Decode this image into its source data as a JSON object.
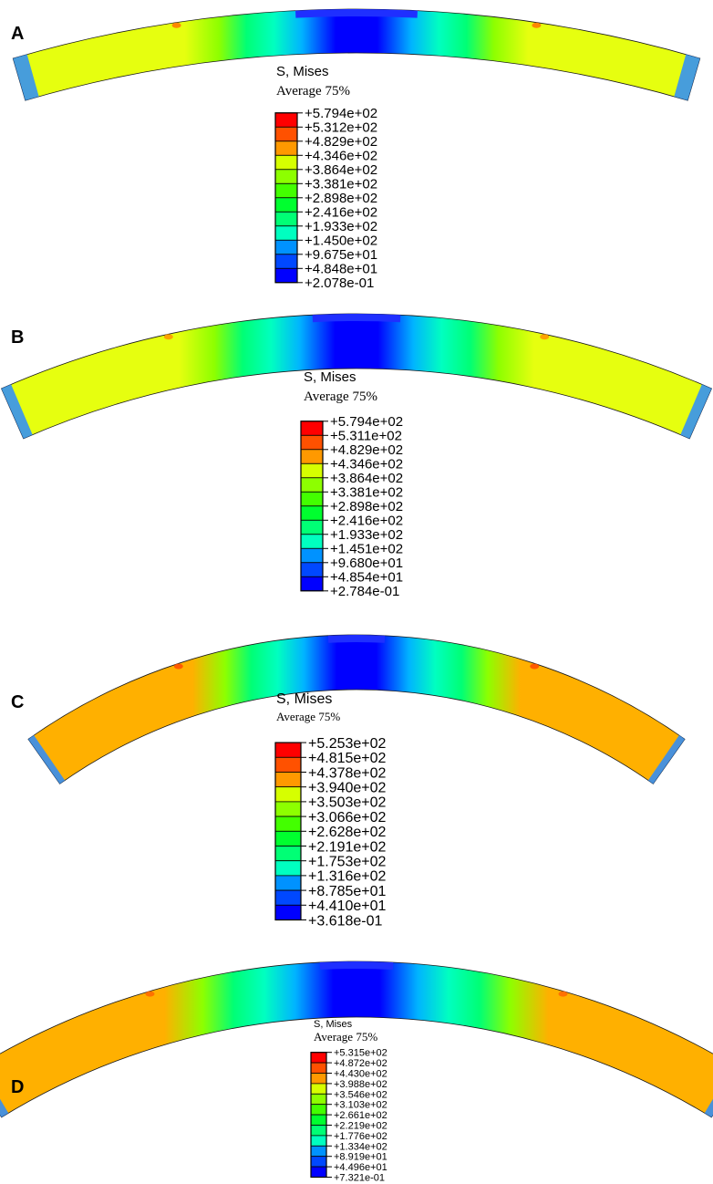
{
  "palette": [
    "#0000ff",
    "#0048ff",
    "#0092ff",
    "#00d8ff",
    "#00ffc0",
    "#00ff75",
    "#00ff2f",
    "#43ff00",
    "#8dff00",
    "#d6ff00",
    "#ffe100",
    "#ff9900",
    "#ff5100",
    "#ff0000"
  ],
  "panels": [
    {
      "letter": "A",
      "title": "S, Mises",
      "subtitle": "Average 75%",
      "values": [
        "+5.794e+02",
        "+5.312e+02",
        "+4.829e+02",
        "+4.346e+02",
        "+3.864e+02",
        "+3.381e+02",
        "+2.898e+02",
        "+2.416e+02",
        "+1.933e+02",
        "+1.450e+02",
        "+9.675e+01",
        "+4.848e+01",
        "+2.078e-01"
      ],
      "dominant_color": "#e6ff0f",
      "accent_color": "#ff7a00"
    },
    {
      "letter": "B",
      "title": "S, Mises",
      "subtitle": "Average 75%",
      "values": [
        "+5.794e+02",
        "+5.311e+02",
        "+4.829e+02",
        "+4.346e+02",
        "+3.864e+02",
        "+3.381e+02",
        "+2.898e+02",
        "+2.416e+02",
        "+1.933e+02",
        "+1.451e+02",
        "+9.680e+01",
        "+4.854e+01",
        "+2.784e-01"
      ],
      "dominant_color": "#e6ff0f",
      "accent_color": "#ff9900"
    },
    {
      "letter": "C",
      "title": "S, Mises",
      "subtitle": "Average 75%",
      "values": [
        "+5.253e+02",
        "+4.815e+02",
        "+4.378e+02",
        "+3.940e+02",
        "+3.503e+02",
        "+3.066e+02",
        "+2.628e+02",
        "+2.191e+02",
        "+1.753e+02",
        "+1.316e+02",
        "+8.785e+01",
        "+4.410e+01",
        "+3.618e-01"
      ],
      "dominant_color": "#ffb000",
      "accent_color": "#ff5100"
    },
    {
      "letter": "D",
      "title": "S, Mises",
      "subtitle": "Average 75%",
      "values": [
        "+5.315e+02",
        "+4.872e+02",
        "+4.430e+02",
        "+3.988e+02",
        "+3.546e+02",
        "+3.103e+02",
        "+2.661e+02",
        "+2.219e+02",
        "+1.776e+02",
        "+1.334e+02",
        "+8.919e+01",
        "+4.496e+01",
        "+7.321e-01"
      ],
      "dominant_color": "#ffb000",
      "accent_color": "#ff6a00"
    }
  ]
}
